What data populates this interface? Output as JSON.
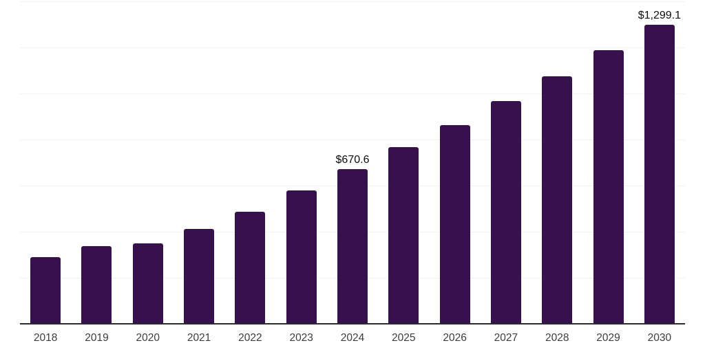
{
  "chart_data": {
    "type": "bar",
    "title": "",
    "xlabel": "",
    "ylabel": "",
    "categories": [
      "2018",
      "2019",
      "2020",
      "2021",
      "2022",
      "2023",
      "2024",
      "2025",
      "2026",
      "2027",
      "2028",
      "2029",
      "2030"
    ],
    "values": [
      290,
      336,
      348,
      411,
      488,
      579,
      670.6,
      766,
      862,
      968,
      1075,
      1187,
      1299.1
    ],
    "annotations": [
      {
        "category": "2024",
        "label": "$670.6"
      },
      {
        "category": "2030",
        "label": "$1,299.1"
      }
    ],
    "ylim": [
      0,
      1400
    ],
    "gridline_step": 200,
    "grid": true,
    "legend": false,
    "colors": {
      "bar": "#37114e",
      "axis_line": "#2b2b2b",
      "gridline": "#f2f2f2",
      "tick_label": "#3d3d3d",
      "annotation": "#0d0d0d",
      "background": "#ffffff"
    }
  }
}
